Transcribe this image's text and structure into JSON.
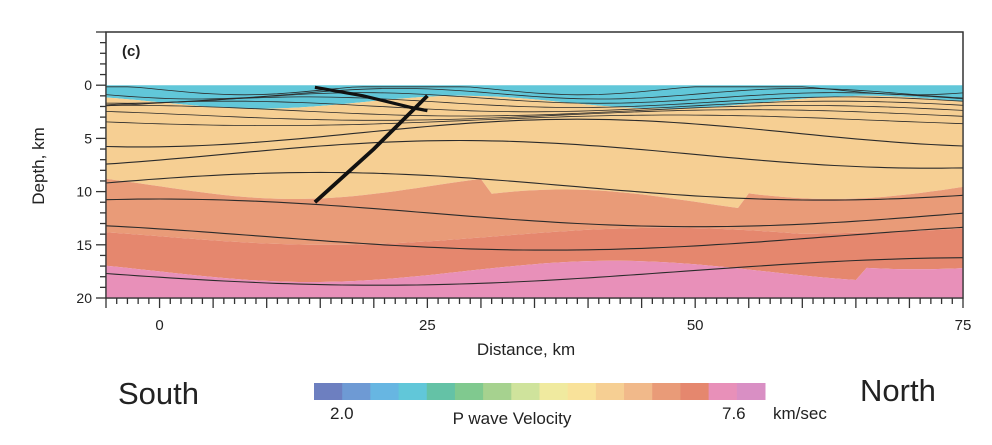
{
  "panel_label": "(c)",
  "direction_left": "South",
  "direction_right": "North",
  "colorbar": {
    "title": "P wave Velocity",
    "min_label": "2.0",
    "max_label": "7.6",
    "unit": "km/sec",
    "colors": [
      "#6d7fc0",
      "#6e9ad4",
      "#67b6e2",
      "#61c7d9",
      "#64c2a6",
      "#80c98f",
      "#a6d28f",
      "#cfe39c",
      "#f0ea9f",
      "#f9e29a",
      "#f6cf93",
      "#f1b98a",
      "#e99b78",
      "#e5876e",
      "#e890b9",
      "#d98fc4"
    ]
  },
  "chart_data": {
    "type": "heatmap",
    "title": "",
    "xlabel": "Distance, km",
    "ylabel": "Depth, km",
    "xlim": [
      -5,
      75
    ],
    "ylim": [
      20,
      -5
    ],
    "xticks": [
      0,
      25,
      50,
      75
    ],
    "yticks": [
      0,
      5,
      10,
      15,
      20
    ],
    "colorscale": {
      "min": 2.0,
      "max": 7.6,
      "unit": "km/sec",
      "label": "P wave Velocity"
    },
    "velocity_layers": [
      {
        "name": "",
        "value": 3.0,
        "description": "near-surface slow layer, depth ~0-2 km"
      },
      {
        "name": "",
        "value": 5.8,
        "description": "upper crust, depth ~2-10 km"
      },
      {
        "name": "",
        "value": 6.3,
        "description": "middle crust, depth ~10-15 km"
      },
      {
        "name": "",
        "value": 6.8,
        "description": "lower crust, depth ~15-18 km"
      },
      {
        "name": "",
        "value": 7.4,
        "description": "deepest layer below ~18 km"
      }
    ],
    "fault_line": {
      "x": [
        14.5,
        19,
        23.5,
        25
      ],
      "y": [
        0.2,
        1.0,
        2.1,
        2.4
      ],
      "lower_branch_x": [
        14.5,
        20,
        25
      ],
      "lower_branch_y": [
        11,
        6,
        1
      ]
    }
  }
}
